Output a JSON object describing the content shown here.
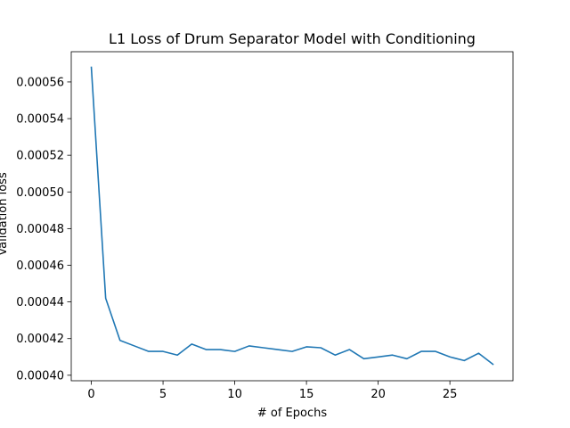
{
  "chart_data": {
    "type": "line",
    "title": "L1 Loss of Drum Separator Model with Conditioning",
    "xlabel": "# of Epochs",
    "ylabel": "Validation loss",
    "xlim": [
      -1.4,
      29.4
    ],
    "ylim": [
      0.000397,
      0.0005765
    ],
    "xticks": [
      0,
      5,
      10,
      15,
      20,
      25
    ],
    "xtick_labels": [
      "0",
      "5",
      "10",
      "15",
      "20",
      "25"
    ],
    "yticks": [
      0.0004,
      0.00042,
      0.00044,
      0.00046,
      0.00048,
      0.0005,
      0.00052,
      0.00054,
      0.00056
    ],
    "ytick_labels": [
      "0.00040",
      "0.00042",
      "0.00044",
      "0.00046",
      "0.00048",
      "0.00050",
      "0.00052",
      "0.00054",
      "0.00056"
    ],
    "grid": false,
    "series": [
      {
        "color": "#1f77b4",
        "x": [
          0,
          1,
          2,
          3,
          4,
          5,
          6,
          7,
          8,
          9,
          10,
          11,
          12,
          13,
          14,
          15,
          16,
          17,
          18,
          19,
          20,
          21,
          22,
          23,
          24,
          25,
          26,
          27,
          28
        ],
        "values": [
          0.000568,
          0.000442,
          0.000419,
          0.000416,
          0.000413,
          0.000413,
          0.000411,
          0.000417,
          0.000414,
          0.000414,
          0.000413,
          0.000416,
          0.000415,
          0.000414,
          0.000413,
          0.0004155,
          0.000415,
          0.000411,
          0.000414,
          0.000409,
          0.00041,
          0.000411,
          0.000409,
          0.000413,
          0.000413,
          0.00041,
          0.000408,
          0.000412,
          0.000406
        ]
      }
    ]
  }
}
